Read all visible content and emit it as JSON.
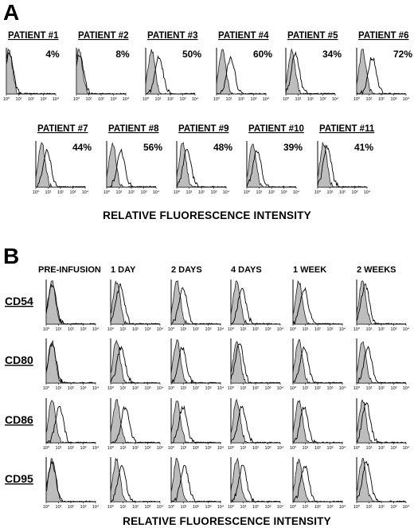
{
  "panel_a": {
    "letter": "A",
    "patients": [
      {
        "label": "PATIENT #1",
        "percent": "4%"
      },
      {
        "label": "PATIENT #2",
        "percent": "8%"
      },
      {
        "label": "PATIENT #3",
        "percent": "50%"
      },
      {
        "label": "PATIENT #4",
        "percent": "60%"
      },
      {
        "label": "PATIENT #5",
        "percent": "34%"
      },
      {
        "label": "PATIENT #6",
        "percent": "72%"
      },
      {
        "label": "PATIENT #7",
        "percent": "44%"
      },
      {
        "label": "PATIENT #8",
        "percent": "56%"
      },
      {
        "label": "PATIENT #9",
        "percent": "48%"
      },
      {
        "label": "PATIENT #10",
        "percent": "39%"
      },
      {
        "label": "PATIENT #11",
        "percent": "41%"
      }
    ],
    "xlabel": "RELATIVE FLUORESCENCE INTENSITY"
  },
  "panel_b": {
    "letter": "B",
    "timepoints": [
      "PRE-INFUSION",
      "1 DAY",
      "2 DAYS",
      "4 DAYS",
      "1 WEEK",
      "2 WEEKS"
    ],
    "markers": [
      "CD54",
      "CD80",
      "CD86",
      "CD95"
    ],
    "xlabel": "RELATIVE FLUORESCENCE INTENSITY"
  },
  "chart_data": [
    {
      "type": "histogram-overlay",
      "panel": "A",
      "xscale": "log",
      "xlim": [
        1,
        10000
      ],
      "x_ticks": [
        "10⁰",
        "10¹",
        "10²",
        "10³",
        "10⁴"
      ],
      "series_legend": "none printed; grey filled = control, open line = stained",
      "panels": [
        {
          "label": "PATIENT #1",
          "percent_positive": 4,
          "control_peak": 1.6,
          "stained_peak": 1.7
        },
        {
          "label": "PATIENT #2",
          "percent_positive": 8,
          "control_peak": 1.6,
          "stained_peak": 1.8
        },
        {
          "label": "PATIENT #3",
          "percent_positive": 50,
          "control_peak": 3,
          "stained_peak": 12
        },
        {
          "label": "PATIENT #4",
          "percent_positive": 60,
          "control_peak": 3,
          "stained_peak": 14
        },
        {
          "label": "PATIENT #5",
          "percent_positive": 34,
          "control_peak": 3,
          "stained_peak": 6
        },
        {
          "label": "PATIENT #6",
          "percent_positive": 72,
          "control_peak": 3,
          "stained_peak": 18
        },
        {
          "label": "PATIENT #7",
          "percent_positive": 44,
          "control_peak": 3,
          "stained_peak": 8
        },
        {
          "label": "PATIENT #8",
          "percent_positive": 56,
          "control_peak": 3,
          "stained_peak": 14
        },
        {
          "label": "PATIENT #9",
          "percent_positive": 48,
          "control_peak": 3,
          "stained_peak": 7
        },
        {
          "label": "PATIENT #10",
          "percent_positive": 39,
          "control_peak": 3,
          "stained_peak": 7
        },
        {
          "label": "PATIENT #11",
          "percent_positive": 41,
          "control_peak": 3,
          "stained_peak": 6
        }
      ]
    },
    {
      "type": "histogram-overlay",
      "panel": "B",
      "xscale": "log",
      "xlim": [
        1,
        10000
      ],
      "x_ticks": [
        "10⁰",
        "10¹",
        "10²",
        "10³",
        "10⁴"
      ],
      "rows": [
        "CD54",
        "CD80",
        "CD86",
        "CD95"
      ],
      "columns": [
        "PRE-INFUSION",
        "1 DAY",
        "2 DAYS",
        "4 DAYS",
        "1 WEEK",
        "2 WEEKS"
      ],
      "stained_peak_grid": [
        [
          3,
          6,
          9,
          8,
          8,
          5
        ],
        [
          3,
          7,
          8,
          5,
          8,
          8
        ],
        [
          12,
          15,
          9,
          8,
          8,
          6
        ],
        [
          3,
          8,
          12,
          9,
          9,
          6
        ]
      ],
      "control_peak": 3
    }
  ]
}
